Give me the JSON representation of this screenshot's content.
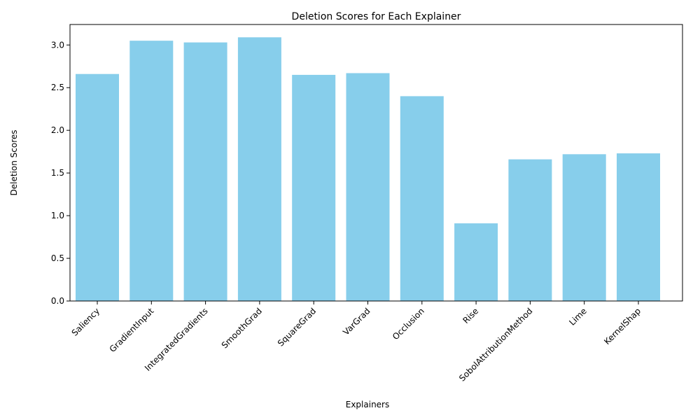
{
  "chart_data": {
    "type": "bar",
    "title": "Deletion Scores for Each Explainer",
    "xlabel": "Explainers",
    "ylabel": "Deletion Scores",
    "categories": [
      "Saliency",
      "GradientInput",
      "IntegratedGradients",
      "SmoothGrad",
      "SquareGrad",
      "VarGrad",
      "Occlusion",
      "Rise",
      "SobolAttributionMethod",
      "Lime",
      "KernelShap"
    ],
    "values": [
      2.66,
      3.05,
      3.03,
      3.09,
      2.65,
      2.67,
      2.4,
      0.91,
      1.66,
      1.72,
      1.73
    ],
    "ylim": [
      0,
      3.24
    ],
    "yticks": [
      "0.0",
      "0.5",
      "1.0",
      "1.5",
      "2.0",
      "2.5",
      "3.0"
    ],
    "bar_color": "#87CEEB",
    "grid": false,
    "legend": "none"
  }
}
